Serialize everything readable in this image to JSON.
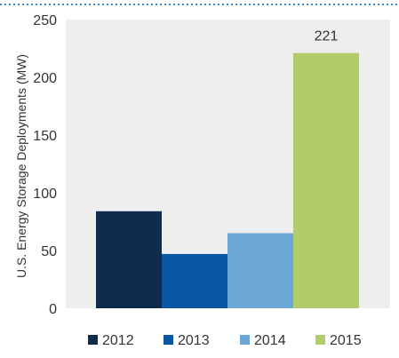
{
  "chart_data": {
    "type": "bar",
    "categories": [
      "2012",
      "2013",
      "2014",
      "2015"
    ],
    "values": [
      84,
      47,
      65,
      221
    ],
    "data_labels": [
      "",
      "",
      "",
      "221"
    ],
    "title": "",
    "xlabel": "",
    "ylabel": "U.S. Energy Storage Deployments (MW)",
    "ylim": [
      0,
      250
    ],
    "yticks": [
      "0",
      "50",
      "100",
      "150",
      "200",
      "250"
    ],
    "grid": false,
    "legend": {
      "placement": "bottom",
      "entries": [
        "2012",
        "2013",
        "2014",
        "2015"
      ]
    },
    "colors": [
      "#0f2b4d",
      "#0a56a3",
      "#6aa6d6",
      "#b3cc6b"
    ],
    "plot_background": "#eeeeee",
    "top_rule_color": "#3b86c4"
  }
}
